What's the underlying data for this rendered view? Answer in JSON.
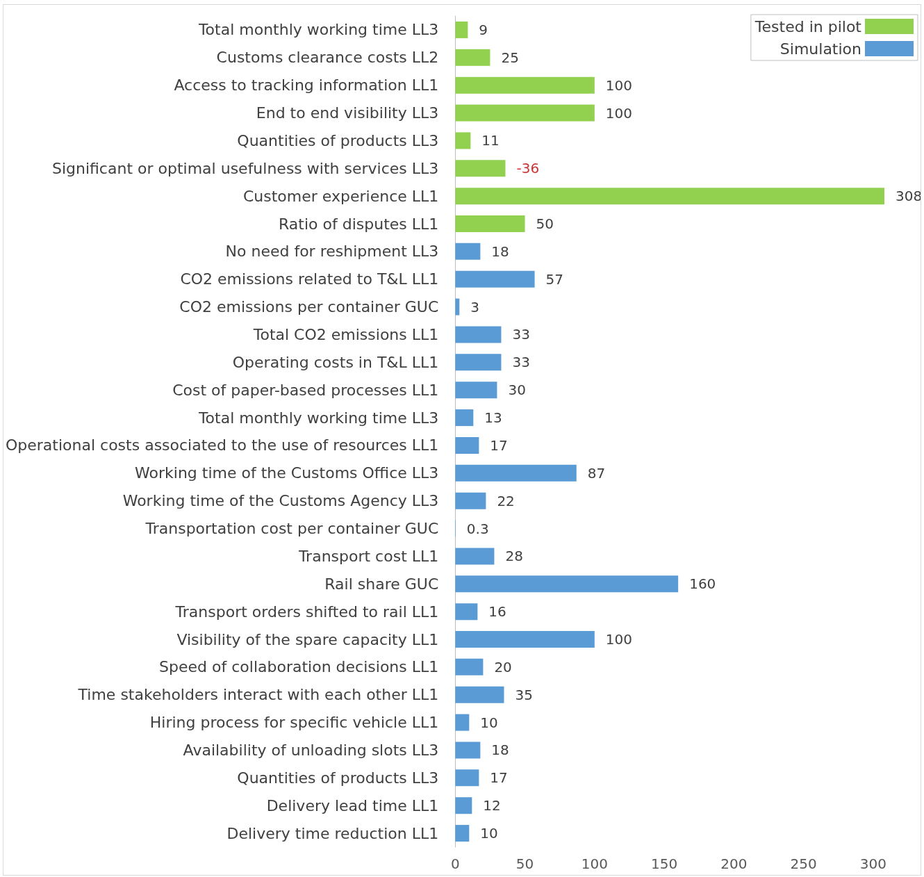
{
  "chart_data": {
    "type": "bar",
    "orientation": "horizontal",
    "categories": [
      "Total monthly working time LL3",
      "Customs clearance costs LL2",
      "Access to tracking information LL1",
      "End to end visibility LL3",
      "Quantities of products LL3",
      "Significant or optimal usefulness with services LL3",
      "Customer experience LL1",
      "Ratio of disputes LL1",
      "No need for reshipment LL3",
      "CO2 emissions related to T&L LL1",
      "CO2 emissions per container GUC",
      "Total CO2 emissions LL1",
      "Operating costs in T&L LL1",
      "Cost of paper-based processes LL1",
      "Total monthly working time LL3",
      "Operational costs associated to the use of resources LL1",
      "Working time of the Customs Office LL3",
      "Working time of the Customs Agency LL3",
      "Transportation cost per container GUC",
      "Transport cost LL1",
      "Rail share GUC",
      "Transport orders shifted to rail LL1",
      "Visibility of the spare capacity LL1",
      "Speed of collaboration decisions LL1",
      "Time stakeholders interact with each other LL1",
      "Hiring process for specific vehicle LL1",
      "Availability of unloading slots LL3",
      "Quantities of products LL3",
      "Delivery lead time LL1",
      "Delivery time reduction LL1"
    ],
    "series": [
      {
        "name": "Tested in pilot",
        "color": "#92d050",
        "values": [
          9,
          25,
          100,
          100,
          11,
          36,
          308,
          50,
          null,
          null,
          null,
          null,
          null,
          null,
          null,
          null,
          null,
          null,
          null,
          null,
          null,
          null,
          null,
          null,
          null,
          null,
          null,
          null,
          null,
          null
        ],
        "value_labels": [
          "9",
          "25",
          "100",
          "100",
          "11",
          null,
          "308",
          "50",
          null,
          null,
          null,
          null,
          null,
          null,
          null,
          null,
          null,
          null,
          null,
          null,
          null,
          null,
          null,
          null,
          null,
          null,
          null,
          null,
          null,
          null
        ]
      },
      {
        "name": "Simulation",
        "color": "#5b9bd5",
        "values": [
          null,
          null,
          null,
          null,
          null,
          null,
          null,
          null,
          18,
          57,
          3,
          33,
          33,
          30,
          13,
          17,
          87,
          22,
          0.3,
          28,
          160,
          16,
          100,
          20,
          35,
          10,
          18,
          17,
          12,
          10
        ],
        "value_labels": [
          null,
          null,
          null,
          null,
          null,
          null,
          null,
          null,
          "18",
          "57",
          "3",
          "33",
          "33",
          "30",
          "13",
          "17",
          "87",
          "22",
          "0.3",
          "28",
          "160",
          "16",
          "100",
          "20",
          "35",
          "10",
          "18",
          "17",
          "12",
          "10"
        ]
      }
    ],
    "annotations": [
      {
        "text": "-36",
        "x": 36,
        "y": "Significant or optimal usefulness with services LL3"
      }
    ],
    "xlim": [
      0,
      310
    ],
    "xticks": [
      0,
      50,
      100,
      150,
      200,
      250,
      300
    ],
    "grid": false,
    "legend": "top right"
  }
}
